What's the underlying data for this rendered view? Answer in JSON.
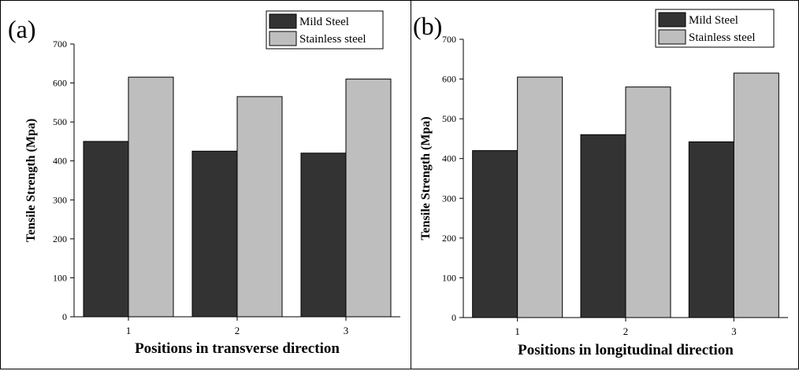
{
  "chart_data": [
    {
      "panel_label": "(a)",
      "type": "bar",
      "categories": [
        "1",
        "2",
        "3"
      ],
      "series": [
        {
          "name": "Mild Steel",
          "values": [
            450,
            425,
            420
          ],
          "color": "#333333"
        },
        {
          "name": "Stainless steel",
          "values": [
            615,
            565,
            610
          ],
          "color": "#bebebe"
        }
      ],
      "xlabel": "Positions in transverse direction",
      "ylabel": "Tensile Strength (Mpa)",
      "ylim": [
        0,
        700
      ],
      "yticks": [
        "0",
        "100",
        "200",
        "300",
        "400",
        "500",
        "600",
        "700"
      ],
      "grid": false,
      "legend_position": "top-right"
    },
    {
      "panel_label": "(b)",
      "type": "bar",
      "categories": [
        "1",
        "2",
        "3"
      ],
      "series": [
        {
          "name": "Mild Steel",
          "values": [
            420,
            460,
            442
          ],
          "color": "#333333"
        },
        {
          "name": "Stainless steel",
          "values": [
            605,
            580,
            615
          ],
          "color": "#bebebe"
        }
      ],
      "xlabel": "Positions in longitudinal direction",
      "ylabel": "Tensile Strength (Mpa)",
      "ylim": [
        0,
        700
      ],
      "yticks": [
        "0",
        "100",
        "200",
        "300",
        "400",
        "500",
        "600",
        "700"
      ],
      "grid": false,
      "legend_position": "top-right"
    }
  ]
}
